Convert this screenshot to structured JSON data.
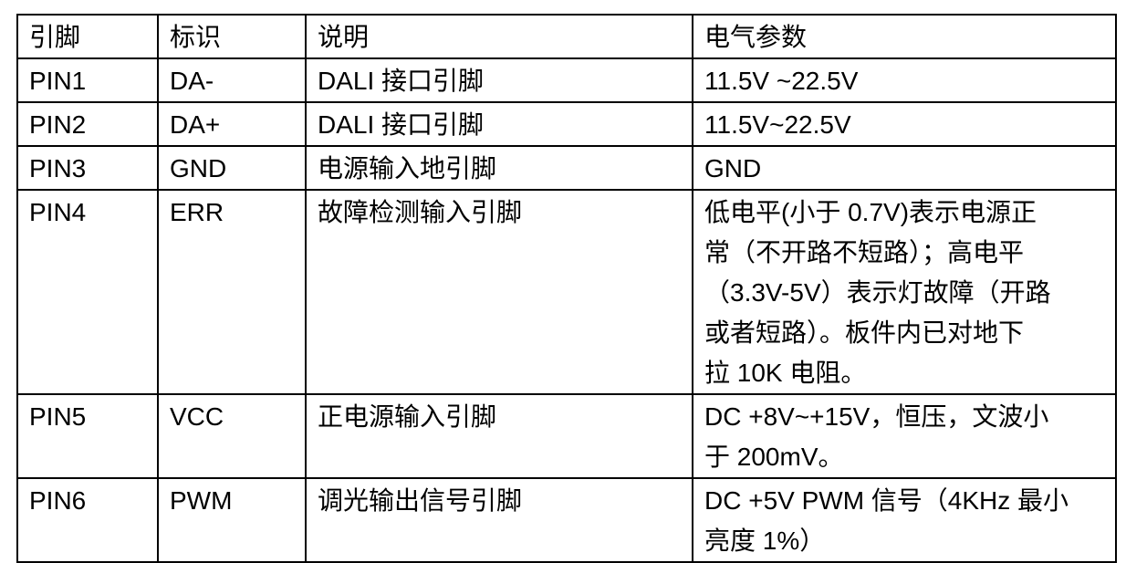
{
  "headers": [
    "引脚",
    "标识",
    "说明",
    "电气参数"
  ],
  "rows": [
    {
      "pin": "PIN1",
      "id": "DA-",
      "desc": "DALI 接口引脚",
      "param": [
        "11.5V ~22.5V"
      ]
    },
    {
      "pin": "PIN2",
      "id": "DA+",
      "desc": "DALI 接口引脚",
      "param": [
        "11.5V~22.5V"
      ]
    },
    {
      "pin": "PIN3",
      "id": "GND",
      "desc": "电源输入地引脚",
      "param": [
        "GND"
      ]
    },
    {
      "pin": "PIN4",
      "id": "ERR",
      "desc": "故障检测输入引脚",
      "param": [
        "低电平(小于 0.7V)表示电源正",
        "常（不开路不短路）；高电平",
        "（3.3V-5V）表示灯故障（开路",
        "或者短路）。板件内已对地下",
        "拉 10K 电阻。"
      ]
    },
    {
      "pin": "PIN5",
      "id": "VCC",
      "desc": "正电源输入引脚",
      "param": [
        "DC +8V~+15V，恒压，文波小",
        "于 200mV。"
      ]
    },
    {
      "pin": "PIN6",
      "id": "PWM",
      "desc": "调光输出信号引脚",
      "param": [
        "DC +5V PWM 信号（4KHz  最小",
        "亮度 1%）"
      ]
    }
  ]
}
